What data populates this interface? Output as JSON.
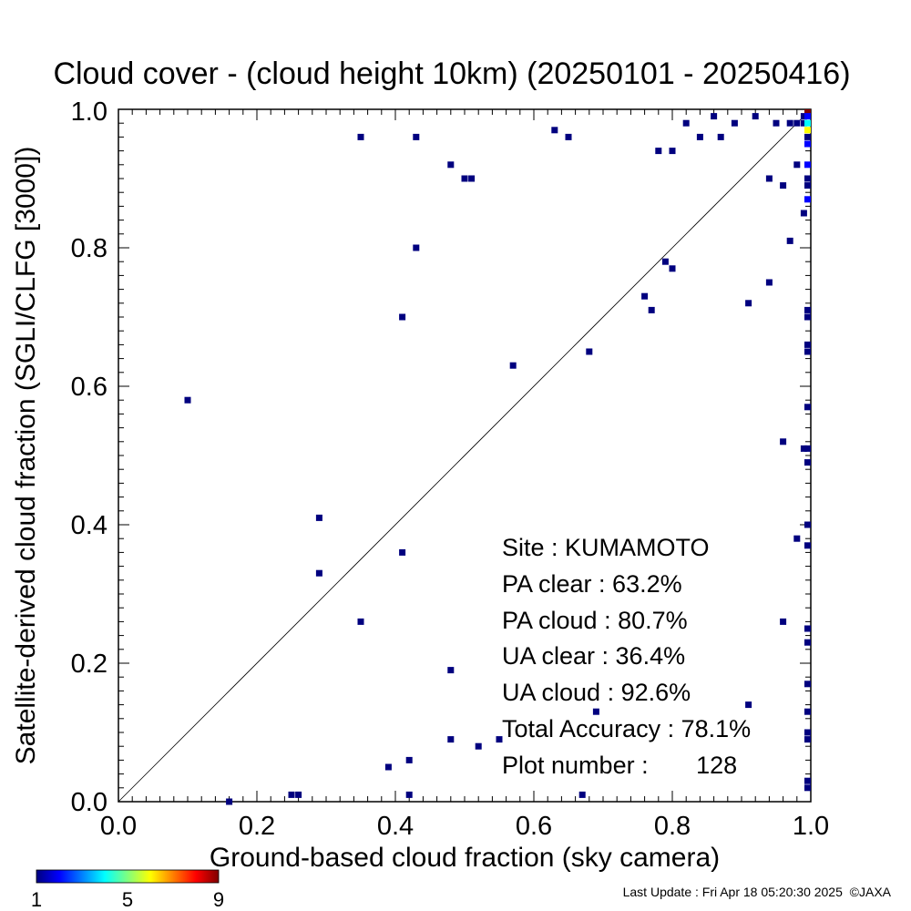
{
  "chart_data": {
    "type": "scatter",
    "title": "Cloud cover - (cloud height 10km)  (20250101 - 20250416)",
    "xlabel": "Ground-based cloud fraction (sky camera)",
    "ylabel": "Satellite-derived cloud fraction (SGLI/CLFG [3000])",
    "xlim": [
      0.0,
      1.0
    ],
    "ylim": [
      0.0,
      1.0
    ],
    "x_ticks": [
      "0.0",
      "0.2",
      "0.4",
      "0.6",
      "0.8",
      "1.0"
    ],
    "y_ticks": [
      "0.0",
      "0.2",
      "0.4",
      "0.6",
      "0.8",
      "1.0"
    ],
    "grid": false,
    "reference_line": "y = x",
    "colorbar": {
      "min_label": "1",
      "mid_label": "5",
      "max_label": "9",
      "colors": [
        "#00007f",
        "#0000ff",
        "#007fff",
        "#00ffff",
        "#7fff7f",
        "#ffff00",
        "#ff7f00",
        "#ff0000",
        "#7f0000"
      ]
    },
    "stats": {
      "site": "Site : KUMAMOTO",
      "pa_clear": "PA clear :  63.2%",
      "pa_cloud": "PA cloud :  80.7%",
      "ua_clear": "UA clear :  36.4%",
      "ua_cloud": "UA cloud :  92.6%",
      "total_accuracy": "Total Accuracy :  78.1%",
      "plot_number": "Plot number :       128"
    },
    "points": [
      {
        "x": 0.1,
        "y": 0.58,
        "c": 1
      },
      {
        "x": 0.16,
        "y": 0.0,
        "c": 1
      },
      {
        "x": 0.25,
        "y": 0.01,
        "c": 1
      },
      {
        "x": 0.26,
        "y": 0.01,
        "c": 1
      },
      {
        "x": 0.29,
        "y": 0.41,
        "c": 1
      },
      {
        "x": 0.29,
        "y": 0.33,
        "c": 1
      },
      {
        "x": 0.35,
        "y": 0.96,
        "c": 1
      },
      {
        "x": 0.35,
        "y": 0.26,
        "c": 1
      },
      {
        "x": 0.39,
        "y": 0.05,
        "c": 1
      },
      {
        "x": 0.41,
        "y": 0.7,
        "c": 1
      },
      {
        "x": 0.41,
        "y": 0.36,
        "c": 1
      },
      {
        "x": 0.42,
        "y": 0.06,
        "c": 1
      },
      {
        "x": 0.42,
        "y": 0.01,
        "c": 1
      },
      {
        "x": 0.43,
        "y": 0.96,
        "c": 1
      },
      {
        "x": 0.43,
        "y": 0.8,
        "c": 1
      },
      {
        "x": 0.48,
        "y": 0.92,
        "c": 1
      },
      {
        "x": 0.48,
        "y": 0.19,
        "c": 1
      },
      {
        "x": 0.48,
        "y": 0.09,
        "c": 1
      },
      {
        "x": 0.5,
        "y": 0.9,
        "c": 1
      },
      {
        "x": 0.51,
        "y": 0.9,
        "c": 1
      },
      {
        "x": 0.52,
        "y": 0.08,
        "c": 1
      },
      {
        "x": 0.55,
        "y": 0.09,
        "c": 1
      },
      {
        "x": 0.57,
        "y": 0.63,
        "c": 1
      },
      {
        "x": 0.63,
        "y": 0.97,
        "c": 1
      },
      {
        "x": 0.65,
        "y": 0.96,
        "c": 1
      },
      {
        "x": 0.67,
        "y": 0.01,
        "c": 1
      },
      {
        "x": 0.68,
        "y": 0.65,
        "c": 1
      },
      {
        "x": 0.69,
        "y": 0.13,
        "c": 1
      },
      {
        "x": 0.76,
        "y": 0.73,
        "c": 1
      },
      {
        "x": 0.77,
        "y": 0.71,
        "c": 1
      },
      {
        "x": 0.78,
        "y": 0.94,
        "c": 1
      },
      {
        "x": 0.79,
        "y": 0.78,
        "c": 1
      },
      {
        "x": 0.8,
        "y": 0.94,
        "c": 1
      },
      {
        "x": 0.8,
        "y": 0.77,
        "c": 1
      },
      {
        "x": 0.82,
        "y": 0.98,
        "c": 1
      },
      {
        "x": 0.84,
        "y": 0.96,
        "c": 1
      },
      {
        "x": 0.86,
        "y": 0.99,
        "c": 1
      },
      {
        "x": 0.87,
        "y": 0.96,
        "c": 1
      },
      {
        "x": 0.89,
        "y": 0.98,
        "c": 1
      },
      {
        "x": 0.91,
        "y": 0.72,
        "c": 1
      },
      {
        "x": 0.91,
        "y": 0.14,
        "c": 1
      },
      {
        "x": 0.92,
        "y": 0.99,
        "c": 1
      },
      {
        "x": 0.94,
        "y": 0.9,
        "c": 1
      },
      {
        "x": 0.94,
        "y": 0.75,
        "c": 1
      },
      {
        "x": 0.95,
        "y": 0.98,
        "c": 1
      },
      {
        "x": 0.96,
        "y": 0.89,
        "c": 1
      },
      {
        "x": 0.96,
        "y": 0.52,
        "c": 1
      },
      {
        "x": 0.96,
        "y": 0.26,
        "c": 1
      },
      {
        "x": 0.97,
        "y": 0.98,
        "c": 1
      },
      {
        "x": 0.97,
        "y": 0.81,
        "c": 1
      },
      {
        "x": 0.98,
        "y": 0.98,
        "c": 1
      },
      {
        "x": 0.98,
        "y": 0.92,
        "c": 1
      },
      {
        "x": 0.98,
        "y": 0.38,
        "c": 1
      },
      {
        "x": 0.99,
        "y": 0.99,
        "c": 1
      },
      {
        "x": 0.99,
        "y": 0.98,
        "c": 1
      },
      {
        "x": 0.99,
        "y": 0.85,
        "c": 1
      },
      {
        "x": 0.99,
        "y": 0.51,
        "c": 1
      },
      {
        "x": 1.0,
        "y": 1.0,
        "c": 9
      },
      {
        "x": 1.0,
        "y": 0.99,
        "c": 2
      },
      {
        "x": 1.0,
        "y": 0.98,
        "c": 4
      },
      {
        "x": 1.0,
        "y": 0.97,
        "c": 6
      },
      {
        "x": 1.0,
        "y": 0.96,
        "c": 1
      },
      {
        "x": 1.0,
        "y": 0.95,
        "c": 2
      },
      {
        "x": 1.0,
        "y": 0.92,
        "c": 2
      },
      {
        "x": 1.0,
        "y": 0.9,
        "c": 1
      },
      {
        "x": 1.0,
        "y": 0.89,
        "c": 1
      },
      {
        "x": 1.0,
        "y": 0.87,
        "c": 2
      },
      {
        "x": 1.0,
        "y": 0.71,
        "c": 1
      },
      {
        "x": 1.0,
        "y": 0.7,
        "c": 1
      },
      {
        "x": 1.0,
        "y": 0.66,
        "c": 1
      },
      {
        "x": 1.0,
        "y": 0.65,
        "c": 1
      },
      {
        "x": 1.0,
        "y": 0.57,
        "c": 1
      },
      {
        "x": 1.0,
        "y": 0.51,
        "c": 1
      },
      {
        "x": 1.0,
        "y": 0.49,
        "c": 1
      },
      {
        "x": 1.0,
        "y": 0.4,
        "c": 1
      },
      {
        "x": 1.0,
        "y": 0.37,
        "c": 1
      },
      {
        "x": 1.0,
        "y": 0.25,
        "c": 1
      },
      {
        "x": 1.0,
        "y": 0.23,
        "c": 1
      },
      {
        "x": 1.0,
        "y": 0.17,
        "c": 1
      },
      {
        "x": 1.0,
        "y": 0.13,
        "c": 1
      },
      {
        "x": 1.0,
        "y": 0.1,
        "c": 1
      },
      {
        "x": 1.0,
        "y": 0.09,
        "c": 1
      },
      {
        "x": 1.0,
        "y": 0.03,
        "c": 1
      },
      {
        "x": 1.0,
        "y": 0.02,
        "c": 1
      }
    ]
  },
  "footer": {
    "last_update": "Last Update : Fri Apr 18 05:20:30 2025  ©JAXA"
  }
}
